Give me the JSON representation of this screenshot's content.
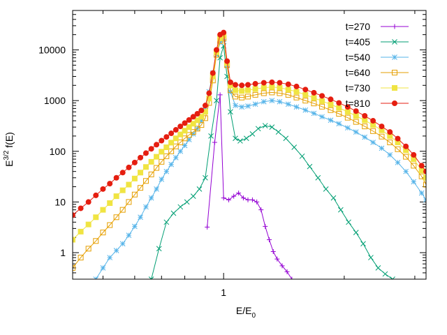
{
  "chart_data": {
    "type": "line",
    "scale": {
      "x": "log",
      "y": "log"
    },
    "xlim": [
      0.42,
      3.2
    ],
    "ylim": [
      0.3,
      60000
    ],
    "x_ticks": [
      {
        "value": 1,
        "label": "1"
      }
    ],
    "y_ticks": [
      {
        "value": 1,
        "label": "1"
      },
      {
        "value": 10,
        "label": "10"
      },
      {
        "value": 100,
        "label": "100"
      },
      {
        "value": 1000,
        "label": "1000"
      },
      {
        "value": 10000,
        "label": "10000"
      }
    ],
    "xlabel": {
      "base": "E/E",
      "sub": "0"
    },
    "ylabel": {
      "pre": "E",
      "sup": "3/2",
      "post": " f(E)"
    },
    "legend_position": "top-right",
    "series": [
      {
        "name": "t=270",
        "color": "#9400d3",
        "marker": "plus",
        "points": [
          [
            0.91,
            3.2
          ],
          [
            0.95,
            150
          ],
          [
            0.98,
            1300
          ],
          [
            1.0,
            12
          ],
          [
            1.03,
            11
          ],
          [
            1.06,
            13
          ],
          [
            1.09,
            15
          ],
          [
            1.12,
            12
          ],
          [
            1.15,
            11
          ],
          [
            1.18,
            11
          ],
          [
            1.21,
            10
          ],
          [
            1.24,
            7
          ],
          [
            1.27,
            3.3
          ],
          [
            1.3,
            1.8
          ],
          [
            1.33,
            1.05
          ],
          [
            1.36,
            0.75
          ],
          [
            1.4,
            0.55
          ],
          [
            1.44,
            0.42
          ],
          [
            1.48,
            0.3
          ]
        ]
      },
      {
        "name": "t=405",
        "color": "#009e73",
        "marker": "x",
        "points": [
          [
            0.66,
            0.3
          ],
          [
            0.69,
            1.2
          ],
          [
            0.72,
            4
          ],
          [
            0.75,
            6
          ],
          [
            0.78,
            8
          ],
          [
            0.81,
            10
          ],
          [
            0.84,
            13
          ],
          [
            0.87,
            18
          ],
          [
            0.9,
            30
          ],
          [
            0.93,
            200
          ],
          [
            0.96,
            1000
          ],
          [
            0.98,
            7000
          ],
          [
            1.0,
            12000
          ],
          [
            1.02,
            3000
          ],
          [
            1.04,
            600
          ],
          [
            1.07,
            180
          ],
          [
            1.1,
            160
          ],
          [
            1.14,
            180
          ],
          [
            1.18,
            220
          ],
          [
            1.22,
            280
          ],
          [
            1.27,
            320
          ],
          [
            1.32,
            300
          ],
          [
            1.37,
            240
          ],
          [
            1.43,
            180
          ],
          [
            1.5,
            120
          ],
          [
            1.57,
            80
          ],
          [
            1.64,
            50
          ],
          [
            1.72,
            30
          ],
          [
            1.8,
            18
          ],
          [
            1.88,
            12
          ],
          [
            1.96,
            7
          ],
          [
            2.05,
            4
          ],
          [
            2.14,
            2.5
          ],
          [
            2.23,
            1.5
          ],
          [
            2.33,
            0.8
          ],
          [
            2.43,
            0.5
          ],
          [
            2.53,
            0.38
          ],
          [
            2.64,
            0.3
          ]
        ]
      },
      {
        "name": "t=540",
        "color": "#56b4e9",
        "marker": "star",
        "points": [
          [
            0.48,
            0.3
          ],
          [
            0.5,
            0.5
          ],
          [
            0.52,
            0.8
          ],
          [
            0.54,
            1.1
          ],
          [
            0.56,
            1.5
          ],
          [
            0.58,
            2.2
          ],
          [
            0.6,
            3.3
          ],
          [
            0.62,
            5
          ],
          [
            0.64,
            8
          ],
          [
            0.66,
            12
          ],
          [
            0.68,
            18
          ],
          [
            0.7,
            28
          ],
          [
            0.72,
            40
          ],
          [
            0.74,
            55
          ],
          [
            0.76,
            75
          ],
          [
            0.78,
            100
          ],
          [
            0.8,
            130
          ],
          [
            0.82,
            170
          ],
          [
            0.84,
            220
          ],
          [
            0.86,
            280
          ],
          [
            0.88,
            400
          ],
          [
            0.9,
            700
          ],
          [
            0.92,
            1500
          ],
          [
            0.94,
            3500
          ],
          [
            0.96,
            8000
          ],
          [
            0.98,
            14000
          ],
          [
            1.0,
            16000
          ],
          [
            1.02,
            5000
          ],
          [
            1.04,
            1500
          ],
          [
            1.07,
            800
          ],
          [
            1.11,
            750
          ],
          [
            1.15,
            780
          ],
          [
            1.2,
            850
          ],
          [
            1.26,
            950
          ],
          [
            1.32,
            1000
          ],
          [
            1.38,
            950
          ],
          [
            1.45,
            850
          ],
          [
            1.52,
            750
          ],
          [
            1.6,
            650
          ],
          [
            1.68,
            560
          ],
          [
            1.76,
            480
          ],
          [
            1.85,
            410
          ],
          [
            1.94,
            350
          ],
          [
            2.04,
            290
          ],
          [
            2.14,
            240
          ],
          [
            2.25,
            190
          ],
          [
            2.36,
            150
          ],
          [
            2.48,
            115
          ],
          [
            2.6,
            85
          ],
          [
            2.72,
            60
          ],
          [
            2.85,
            40
          ],
          [
            2.98,
            25
          ],
          [
            3.12,
            15
          ],
          [
            3.2,
            11
          ]
        ]
      },
      {
        "name": "t=640",
        "color": "#e69f00",
        "marker": "square",
        "points": [
          [
            0.42,
            0.5
          ],
          [
            0.44,
            0.8
          ],
          [
            0.46,
            1.2
          ],
          [
            0.48,
            1.7
          ],
          [
            0.5,
            2.5
          ],
          [
            0.52,
            3.5
          ],
          [
            0.54,
            5
          ],
          [
            0.56,
            7
          ],
          [
            0.58,
            10
          ],
          [
            0.6,
            14
          ],
          [
            0.62,
            19
          ],
          [
            0.64,
            26
          ],
          [
            0.66,
            35
          ],
          [
            0.68,
            47
          ],
          [
            0.7,
            62
          ],
          [
            0.72,
            80
          ],
          [
            0.74,
            100
          ],
          [
            0.76,
            125
          ],
          [
            0.78,
            150
          ],
          [
            0.8,
            180
          ],
          [
            0.82,
            210
          ],
          [
            0.84,
            240
          ],
          [
            0.86,
            280
          ],
          [
            0.88,
            330
          ],
          [
            0.9,
            450
          ],
          [
            0.92,
            900
          ],
          [
            0.94,
            2500
          ],
          [
            0.96,
            8000
          ],
          [
            0.98,
            15000
          ],
          [
            1.0,
            17000
          ],
          [
            1.02,
            5000
          ],
          [
            1.04,
            1600
          ],
          [
            1.07,
            1200
          ],
          [
            1.11,
            1150
          ],
          [
            1.15,
            1200
          ],
          [
            1.2,
            1300
          ],
          [
            1.26,
            1400
          ],
          [
            1.32,
            1450
          ],
          [
            1.38,
            1400
          ],
          [
            1.45,
            1300
          ],
          [
            1.52,
            1150
          ],
          [
            1.6,
            1000
          ],
          [
            1.68,
            880
          ],
          [
            1.76,
            760
          ],
          [
            1.85,
            650
          ],
          [
            1.94,
            550
          ],
          [
            2.04,
            460
          ],
          [
            2.14,
            380
          ],
          [
            2.25,
            310
          ],
          [
            2.36,
            250
          ],
          [
            2.48,
            195
          ],
          [
            2.6,
            150
          ],
          [
            2.72,
            110
          ],
          [
            2.85,
            78
          ],
          [
            2.98,
            52
          ],
          [
            3.12,
            32
          ],
          [
            3.2,
            22
          ]
        ]
      },
      {
        "name": "t=730",
        "color": "#f0e442",
        "marker": "filled-square",
        "points": [
          [
            0.42,
            1.8
          ],
          [
            0.44,
            2.6
          ],
          [
            0.46,
            3.6
          ],
          [
            0.48,
            5
          ],
          [
            0.5,
            7
          ],
          [
            0.52,
            9.5
          ],
          [
            0.54,
            13
          ],
          [
            0.56,
            17
          ],
          [
            0.58,
            22
          ],
          [
            0.6,
            29
          ],
          [
            0.62,
            38
          ],
          [
            0.64,
            49
          ],
          [
            0.66,
            62
          ],
          [
            0.68,
            78
          ],
          [
            0.7,
            98
          ],
          [
            0.72,
            120
          ],
          [
            0.74,
            148
          ],
          [
            0.76,
            180
          ],
          [
            0.78,
            215
          ],
          [
            0.8,
            255
          ],
          [
            0.82,
            300
          ],
          [
            0.84,
            350
          ],
          [
            0.86,
            410
          ],
          [
            0.88,
            480
          ],
          [
            0.9,
            600
          ],
          [
            0.92,
            1100
          ],
          [
            0.94,
            3000
          ],
          [
            0.96,
            9000
          ],
          [
            0.98,
            17000
          ],
          [
            1.0,
            19000
          ],
          [
            1.02,
            5500
          ],
          [
            1.04,
            2000
          ],
          [
            1.07,
            1600
          ],
          [
            1.11,
            1550
          ],
          [
            1.15,
            1600
          ],
          [
            1.2,
            1700
          ],
          [
            1.26,
            1800
          ],
          [
            1.32,
            1850
          ],
          [
            1.38,
            1800
          ],
          [
            1.45,
            1650
          ],
          [
            1.52,
            1500
          ],
          [
            1.6,
            1300
          ],
          [
            1.68,
            1130
          ],
          [
            1.76,
            980
          ],
          [
            1.85,
            840
          ],
          [
            1.94,
            720
          ],
          [
            2.04,
            600
          ],
          [
            2.14,
            500
          ],
          [
            2.25,
            410
          ],
          [
            2.36,
            330
          ],
          [
            2.48,
            260
          ],
          [
            2.6,
            200
          ],
          [
            2.72,
            150
          ],
          [
            2.85,
            105
          ],
          [
            2.98,
            70
          ],
          [
            3.12,
            42
          ],
          [
            3.2,
            30
          ]
        ]
      },
      {
        "name": "t=810",
        "color": "#e51e10",
        "marker": "filled-circle",
        "points": [
          [
            0.42,
            5.5
          ],
          [
            0.44,
            7.5
          ],
          [
            0.46,
            10
          ],
          [
            0.48,
            13.5
          ],
          [
            0.5,
            18
          ],
          [
            0.52,
            23
          ],
          [
            0.54,
            30
          ],
          [
            0.56,
            38
          ],
          [
            0.58,
            48
          ],
          [
            0.6,
            60
          ],
          [
            0.62,
            75
          ],
          [
            0.64,
            92
          ],
          [
            0.66,
            112
          ],
          [
            0.68,
            135
          ],
          [
            0.7,
            162
          ],
          [
            0.72,
            192
          ],
          [
            0.74,
            226
          ],
          [
            0.76,
            265
          ],
          [
            0.78,
            310
          ],
          [
            0.8,
            360
          ],
          [
            0.82,
            415
          ],
          [
            0.84,
            480
          ],
          [
            0.86,
            550
          ],
          [
            0.88,
            640
          ],
          [
            0.9,
            800
          ],
          [
            0.92,
            1400
          ],
          [
            0.94,
            3500
          ],
          [
            0.96,
            10000
          ],
          [
            0.98,
            20000
          ],
          [
            1.0,
            22000
          ],
          [
            1.02,
            6000
          ],
          [
            1.04,
            2300
          ],
          [
            1.07,
            2050
          ],
          [
            1.11,
            2000
          ],
          [
            1.15,
            2050
          ],
          [
            1.2,
            2150
          ],
          [
            1.26,
            2250
          ],
          [
            1.32,
            2300
          ],
          [
            1.38,
            2250
          ],
          [
            1.45,
            2100
          ],
          [
            1.52,
            1900
          ],
          [
            1.6,
            1650
          ],
          [
            1.68,
            1430
          ],
          [
            1.76,
            1240
          ],
          [
            1.85,
            1060
          ],
          [
            1.94,
            900
          ],
          [
            2.04,
            750
          ],
          [
            2.14,
            620
          ],
          [
            2.25,
            500
          ],
          [
            2.36,
            400
          ],
          [
            2.48,
            310
          ],
          [
            2.6,
            240
          ],
          [
            2.72,
            178
          ],
          [
            2.85,
            125
          ],
          [
            2.98,
            85
          ],
          [
            3.12,
            52
          ],
          [
            3.2,
            40
          ]
        ]
      }
    ]
  }
}
